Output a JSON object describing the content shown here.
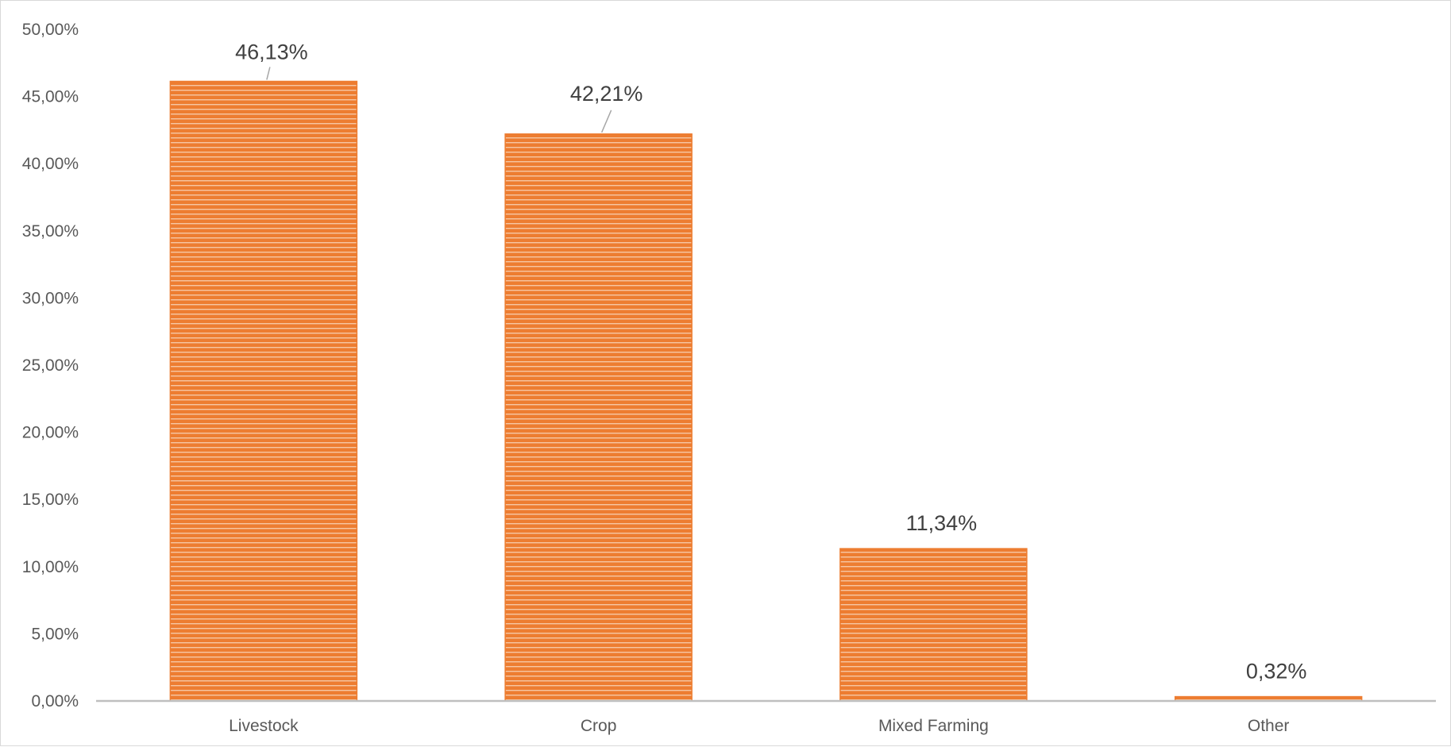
{
  "chart_data": {
    "type": "bar",
    "title": "",
    "xlabel": "",
    "ylabel": "",
    "categories": [
      "Livestock",
      "Crop",
      "Mixed Farming",
      "Other"
    ],
    "values": [
      46.13,
      42.21,
      11.34,
      0.32
    ],
    "data_labels": [
      "46,13%",
      "42,21%",
      "11,34%",
      "0,32%"
    ],
    "ylim": [
      0,
      50
    ],
    "yticks": [
      0,
      5,
      10,
      15,
      20,
      25,
      30,
      35,
      40,
      45,
      50
    ],
    "ytick_labels": [
      "0,00%",
      "5,00%",
      "10,00%",
      "15,00%",
      "20,00%",
      "25,00%",
      "30,00%",
      "35,00%",
      "40,00%",
      "45,00%",
      "50,00%"
    ],
    "grid": false,
    "legend": "none",
    "bar_color": "#ed7d31",
    "bar_pattern": "horizontal-stripes",
    "axis_color": "#bfbfbf",
    "text_color": "#595959",
    "data_label_color": "#404040",
    "leader_line_color": "#a6a6a6"
  }
}
